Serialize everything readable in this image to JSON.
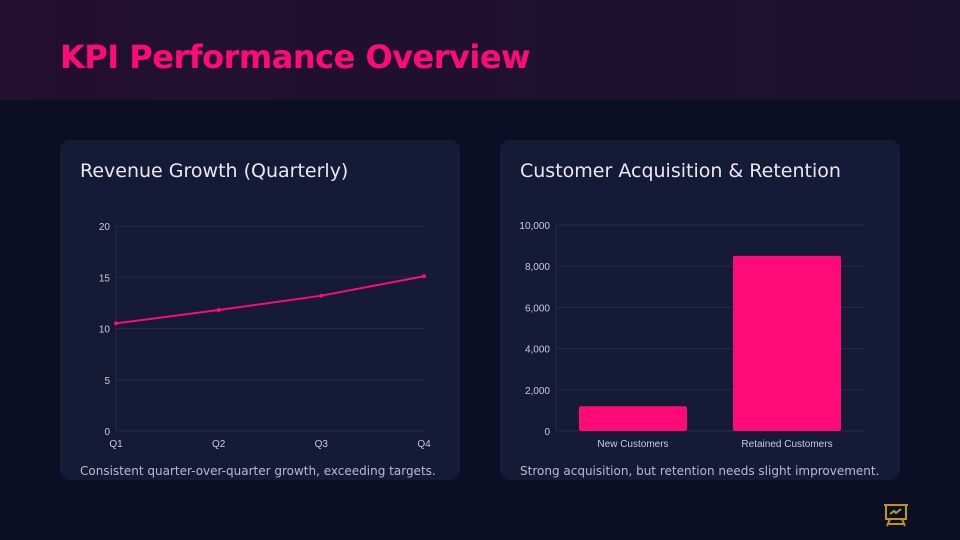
{
  "header": {
    "title": "KPI Performance Overview"
  },
  "cards": [
    {
      "title": "Revenue Growth (Quarterly)",
      "caption": "Consistent quarter-over-quarter growth, exceeding targets."
    },
    {
      "title": "Customer Acquisition & Retention",
      "caption": "Strong acquisition, but retention needs slight improvement."
    }
  ],
  "colors": {
    "accent": "#ff0a78",
    "card": "#151a37",
    "background": "#0b0f26",
    "icon": "#b8961f"
  },
  "footer_icon": "presentation-chart-icon",
  "chart_data": [
    {
      "type": "line",
      "categories": [
        "Q1",
        "Q2",
        "Q3",
        "Q4"
      ],
      "values": [
        10.5,
        11.8,
        13.2,
        15.1
      ],
      "ylim": [
        0,
        20
      ],
      "yticks": [
        "0",
        "5",
        "10",
        "15",
        "20"
      ],
      "grid": true,
      "xlabel": "",
      "ylabel": ""
    },
    {
      "type": "bar",
      "categories": [
        "New Customers",
        "Retained Customers"
      ],
      "values": [
        1200,
        8500
      ],
      "ylim": [
        0,
        10000
      ],
      "yticks": [
        "0",
        "2,000",
        "4,000",
        "6,000",
        "8,000",
        "10,000"
      ],
      "grid": true,
      "xlabel": "",
      "ylabel": ""
    }
  ]
}
